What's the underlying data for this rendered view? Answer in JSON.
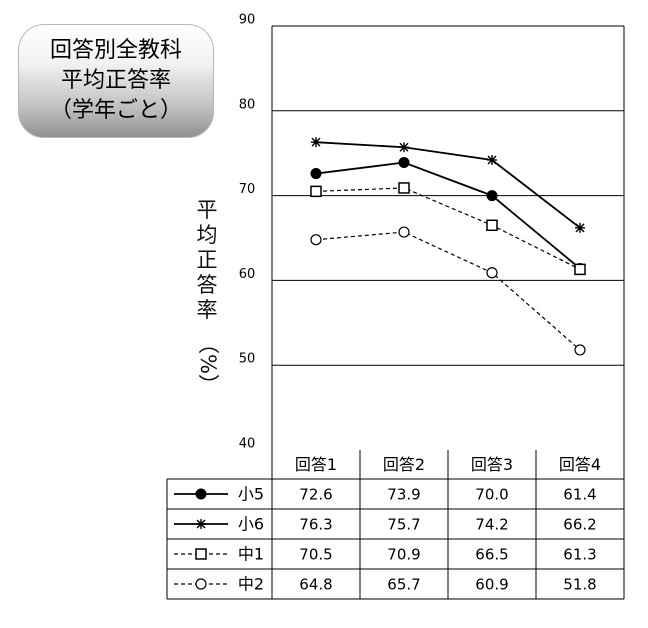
{
  "title": [
    "回答別全教科",
    "平均正答率",
    "（学年ごと）"
  ],
  "ylabel": {
    "text": "平均正答率",
    "unit": "（%）"
  },
  "chart_data": {
    "type": "line",
    "categories": [
      "回答1",
      "回答2",
      "回答3",
      "回答4"
    ],
    "ylim": [
      40,
      90
    ],
    "yticks": [
      40,
      50,
      60,
      70,
      80,
      90
    ],
    "grid": true,
    "series": [
      {
        "name": "小5",
        "marker": "filled-circle",
        "dash": "solid",
        "values": [
          72.6,
          73.9,
          70.0,
          61.4
        ]
      },
      {
        "name": "小6",
        "marker": "asterisk",
        "dash": "solid",
        "values": [
          76.3,
          75.7,
          74.2,
          66.2
        ]
      },
      {
        "name": "中1",
        "marker": "open-square",
        "dash": "dashed",
        "values": [
          70.5,
          70.9,
          66.5,
          61.3
        ]
      },
      {
        "name": "中2",
        "marker": "open-circle",
        "dash": "dashed",
        "values": [
          64.8,
          65.7,
          60.9,
          51.8
        ]
      }
    ],
    "table": {
      "header": [
        "回答1",
        "回答2",
        "回答3",
        "回答4"
      ],
      "rows": [
        [
          "72.6",
          "73.9",
          "70.0",
          "61.4"
        ],
        [
          "76.3",
          "75.7",
          "74.2",
          "66.2"
        ],
        [
          "70.5",
          "70.9",
          "66.5",
          "61.3"
        ],
        [
          "64.8",
          "65.7",
          "60.9",
          "51.8"
        ]
      ]
    }
  }
}
